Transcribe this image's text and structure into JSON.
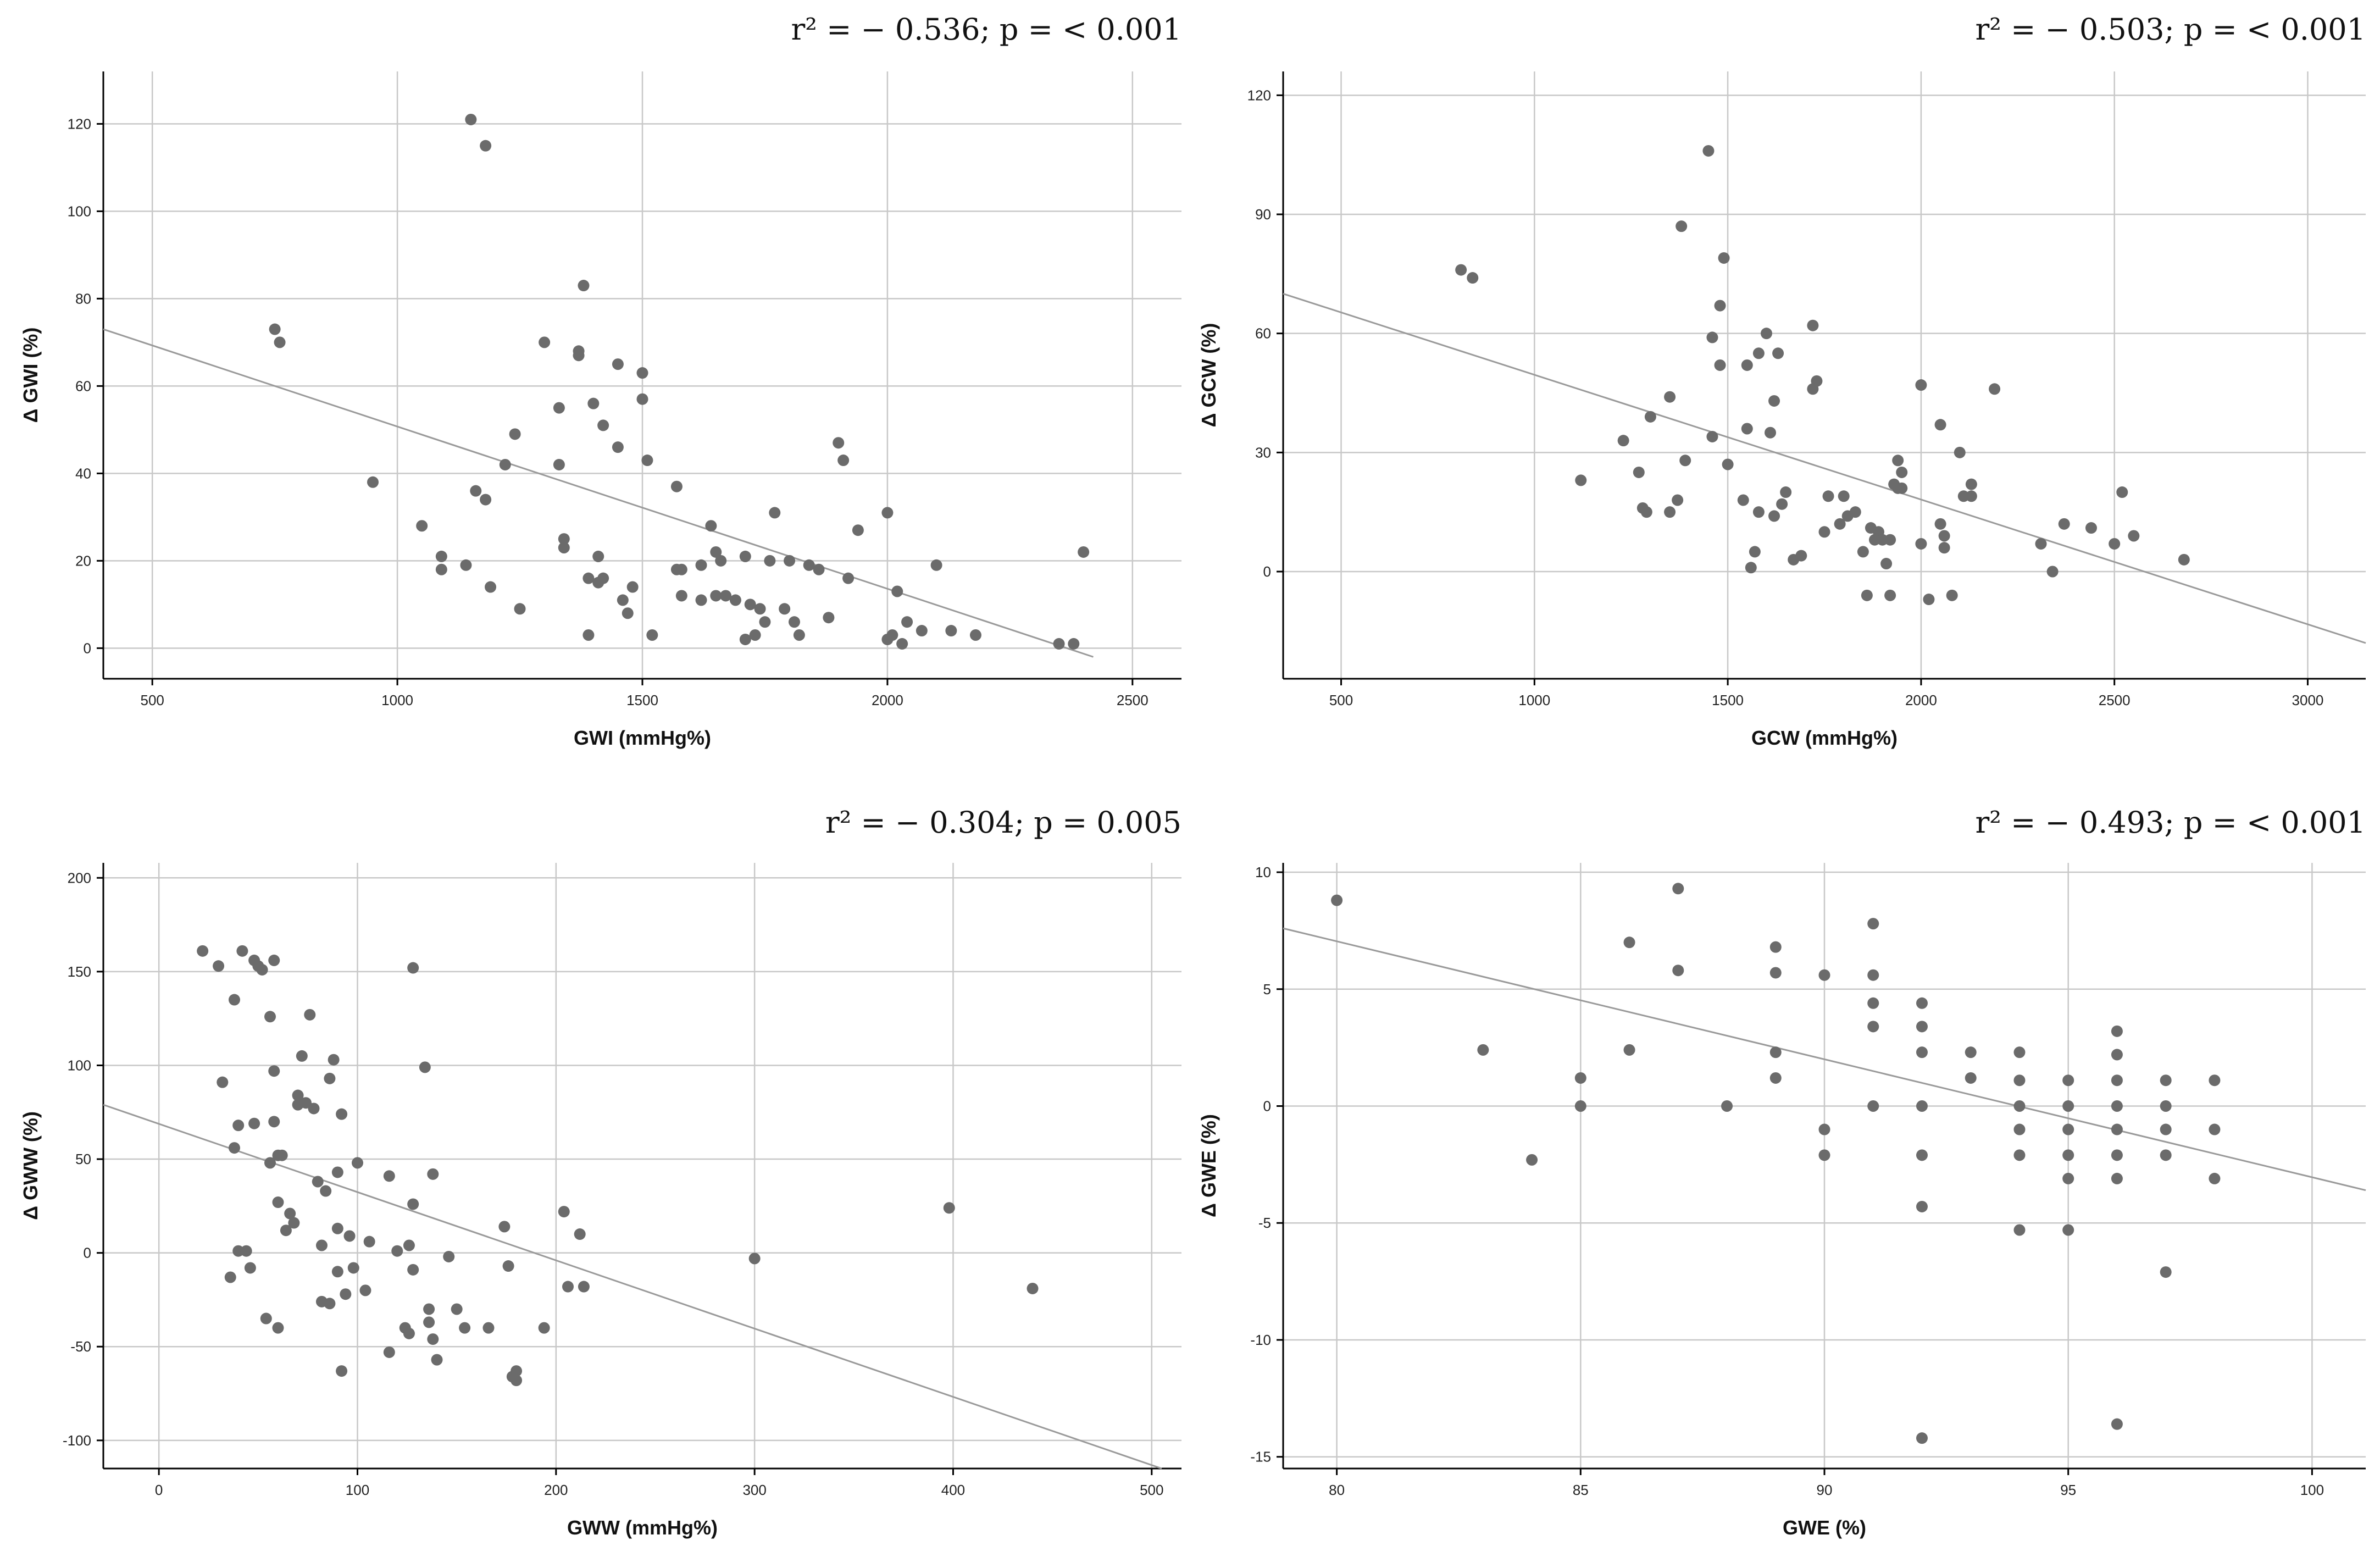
{
  "chart_data": [
    {
      "type": "scatter",
      "id": "gwi",
      "title": "",
      "stats_text": "r² = − 0.536; p = < 0.001",
      "xlabel": "GWI (mmHg%)",
      "ylabel": "Δ GWI (%)",
      "xlim": [
        400,
        2600
      ],
      "ylim": [
        -7,
        132
      ],
      "xticks": [
        500,
        1000,
        1500,
        2000,
        2500
      ],
      "yticks": [
        0,
        20,
        40,
        60,
        80,
        100,
        120
      ],
      "fit_line": {
        "x": [
          400,
          2420
        ],
        "y": [
          73,
          -2
        ]
      },
      "points": [
        [
          750,
          73
        ],
        [
          760,
          70
        ],
        [
          950,
          38
        ],
        [
          1050,
          28
        ],
        [
          1090,
          21
        ],
        [
          1090,
          18
        ],
        [
          1140,
          19
        ],
        [
          1150,
          121
        ],
        [
          1160,
          36
        ],
        [
          1180,
          115
        ],
        [
          1180,
          34
        ],
        [
          1190,
          14
        ],
        [
          1220,
          42
        ],
        [
          1240,
          49
        ],
        [
          1250,
          9
        ],
        [
          1300,
          70
        ],
        [
          1330,
          55
        ],
        [
          1330,
          42
        ],
        [
          1340,
          23
        ],
        [
          1340,
          25
        ],
        [
          1370,
          67
        ],
        [
          1370,
          68
        ],
        [
          1380,
          83
        ],
        [
          1390,
          3
        ],
        [
          1390,
          16
        ],
        [
          1400,
          56
        ],
        [
          1410,
          21
        ],
        [
          1410,
          15
        ],
        [
          1420,
          16
        ],
        [
          1420,
          51
        ],
        [
          1450,
          65
        ],
        [
          1450,
          46
        ],
        [
          1460,
          11
        ],
        [
          1470,
          8
        ],
        [
          1480,
          14
        ],
        [
          1500,
          63
        ],
        [
          1500,
          57
        ],
        [
          1510,
          43
        ],
        [
          1520,
          3
        ],
        [
          1570,
          37
        ],
        [
          1570,
          18
        ],
        [
          1580,
          18
        ],
        [
          1580,
          12
        ],
        [
          1620,
          19
        ],
        [
          1620,
          11
        ],
        [
          1640,
          28
        ],
        [
          1650,
          22
        ],
        [
          1650,
          12
        ],
        [
          1660,
          20
        ],
        [
          1670,
          12
        ],
        [
          1690,
          11
        ],
        [
          1710,
          21
        ],
        [
          1710,
          2
        ],
        [
          1720,
          10
        ],
        [
          1730,
          3
        ],
        [
          1740,
          9
        ],
        [
          1750,
          6
        ],
        [
          1760,
          20
        ],
        [
          1770,
          31
        ],
        [
          1790,
          9
        ],
        [
          1800,
          20
        ],
        [
          1810,
          6
        ],
        [
          1820,
          3
        ],
        [
          1840,
          19
        ],
        [
          1860,
          18
        ],
        [
          1880,
          7
        ],
        [
          1900,
          47
        ],
        [
          1910,
          43
        ],
        [
          1920,
          16
        ],
        [
          1940,
          27
        ],
        [
          2000,
          31
        ],
        [
          2000,
          2
        ],
        [
          2010,
          3
        ],
        [
          2020,
          13
        ],
        [
          2030,
          1
        ],
        [
          2040,
          6
        ],
        [
          2070,
          4
        ],
        [
          2100,
          19
        ],
        [
          2130,
          4
        ],
        [
          2180,
          3
        ],
        [
          2350,
          1
        ],
        [
          2380,
          1
        ],
        [
          2400,
          22
        ]
      ]
    },
    {
      "type": "scatter",
      "id": "gcw",
      "title": "",
      "stats_text": "r² = − 0.503; p = < 0.001",
      "xlabel": "GCW (mmHg%)",
      "ylabel": "Δ GCW (%)",
      "xlim": [
        350,
        3150
      ],
      "ylim": [
        -27,
        126
      ],
      "xticks": [
        500,
        1000,
        1500,
        2000,
        2500,
        3000
      ],
      "yticks": [
        0,
        30,
        60,
        90,
        120
      ],
      "fit_line": {
        "x": [
          350,
          3150
        ],
        "y": [
          70,
          -18
        ]
      },
      "points": [
        [
          810,
          76
        ],
        [
          840,
          74
        ],
        [
          1120,
          23
        ],
        [
          1230,
          33
        ],
        [
          1270,
          25
        ],
        [
          1280,
          16
        ],
        [
          1290,
          15
        ],
        [
          1300,
          39
        ],
        [
          1350,
          44
        ],
        [
          1350,
          15
        ],
        [
          1370,
          18
        ],
        [
          1380,
          87
        ],
        [
          1390,
          28
        ],
        [
          1450,
          106
        ],
        [
          1460,
          59
        ],
        [
          1460,
          34
        ],
        [
          1480,
          67
        ],
        [
          1480,
          52
        ],
        [
          1490,
          79
        ],
        [
          1500,
          27
        ],
        [
          1540,
          18
        ],
        [
          1550,
          52
        ],
        [
          1550,
          36
        ],
        [
          1560,
          1
        ],
        [
          1570,
          5
        ],
        [
          1580,
          55
        ],
        [
          1580,
          15
        ],
        [
          1600,
          60
        ],
        [
          1610,
          35
        ],
        [
          1620,
          43
        ],
        [
          1620,
          14
        ],
        [
          1630,
          55
        ],
        [
          1640,
          17
        ],
        [
          1650,
          20
        ],
        [
          1670,
          3
        ],
        [
          1690,
          4
        ],
        [
          1720,
          62
        ],
        [
          1720,
          46
        ],
        [
          1730,
          48
        ],
        [
          1750,
          10
        ],
        [
          1760,
          19
        ],
        [
          1790,
          12
        ],
        [
          1800,
          19
        ],
        [
          1810,
          14
        ],
        [
          1830,
          15
        ],
        [
          1850,
          5
        ],
        [
          1860,
          -6
        ],
        [
          1870,
          11
        ],
        [
          1880,
          8
        ],
        [
          1890,
          10
        ],
        [
          1900,
          8
        ],
        [
          1910,
          2
        ],
        [
          1920,
          8
        ],
        [
          1920,
          -6
        ],
        [
          1930,
          22
        ],
        [
          1940,
          21
        ],
        [
          1940,
          28
        ],
        [
          1950,
          25
        ],
        [
          1950,
          21
        ],
        [
          2000,
          47
        ],
        [
          2000,
          7
        ],
        [
          2020,
          -7
        ],
        [
          2050,
          37
        ],
        [
          2050,
          12
        ],
        [
          2060,
          9
        ],
        [
          2060,
          6
        ],
        [
          2080,
          -6
        ],
        [
          2100,
          30
        ],
        [
          2110,
          19
        ],
        [
          2130,
          22
        ],
        [
          2130,
          19
        ],
        [
          2190,
          46
        ],
        [
          2310,
          7
        ],
        [
          2340,
          0
        ],
        [
          2370,
          12
        ],
        [
          2440,
          11
        ],
        [
          2500,
          7
        ],
        [
          2520,
          20
        ],
        [
          2550,
          9
        ],
        [
          2680,
          3
        ]
      ]
    },
    {
      "type": "scatter",
      "id": "gww",
      "title": "",
      "stats_text": "r² = − 0.304; p = 0.005",
      "xlabel": "GWW (mmHg%)",
      "ylabel": "Δ GWW (%)",
      "xlim": [
        -28,
        515
      ],
      "ylim": [
        -115,
        208
      ],
      "xticks": [
        0,
        100,
        200,
        300,
        400,
        500
      ],
      "yticks": [
        -100,
        -50,
        0,
        50,
        100,
        150,
        200
      ],
      "fit_line": {
        "x": [
          -28,
          505
        ],
        "y": [
          79,
          -115
        ]
      },
      "points": [
        [
          22,
          161
        ],
        [
          30,
          153
        ],
        [
          32,
          91
        ],
        [
          36,
          -13
        ],
        [
          38,
          135
        ],
        [
          38,
          56
        ],
        [
          40,
          68
        ],
        [
          40,
          1
        ],
        [
          42,
          161
        ],
        [
          44,
          1
        ],
        [
          46,
          -8
        ],
        [
          48,
          69
        ],
        [
          48,
          156
        ],
        [
          50,
          153
        ],
        [
          52,
          151
        ],
        [
          54,
          -35
        ],
        [
          56,
          48
        ],
        [
          56,
          126
        ],
        [
          58,
          156
        ],
        [
          58,
          97
        ],
        [
          58,
          70
        ],
        [
          60,
          52
        ],
        [
          60,
          -40
        ],
        [
          60,
          27
        ],
        [
          62,
          52
        ],
        [
          64,
          12
        ],
        [
          66,
          21
        ],
        [
          68,
          16
        ],
        [
          70,
          79
        ],
        [
          70,
          84
        ],
        [
          72,
          105
        ],
        [
          74,
          80
        ],
        [
          76,
          127
        ],
        [
          78,
          77
        ],
        [
          80,
          38
        ],
        [
          82,
          -26
        ],
        [
          82,
          4
        ],
        [
          84,
          33
        ],
        [
          86,
          93
        ],
        [
          86,
          -27
        ],
        [
          88,
          103
        ],
        [
          90,
          13
        ],
        [
          90,
          -10
        ],
        [
          90,
          43
        ],
        [
          92,
          74
        ],
        [
          92,
          -63
        ],
        [
          94,
          -22
        ],
        [
          96,
          9
        ],
        [
          98,
          -8
        ],
        [
          100,
          48
        ],
        [
          104,
          -20
        ],
        [
          106,
          6
        ],
        [
          116,
          41
        ],
        [
          116,
          -53
        ],
        [
          120,
          1
        ],
        [
          124,
          -40
        ],
        [
          126,
          -43
        ],
        [
          126,
          4
        ],
        [
          128,
          152
        ],
        [
          128,
          26
        ],
        [
          128,
          -9
        ],
        [
          134,
          99
        ],
        [
          136,
          -30
        ],
        [
          136,
          -37
        ],
        [
          138,
          -46
        ],
        [
          138,
          42
        ],
        [
          140,
          -57
        ],
        [
          146,
          -2
        ],
        [
          150,
          -30
        ],
        [
          154,
          -40
        ],
        [
          166,
          -40
        ],
        [
          174,
          14
        ],
        [
          176,
          -7
        ],
        [
          178,
          -66
        ],
        [
          180,
          -63
        ],
        [
          180,
          -68
        ],
        [
          194,
          -40
        ],
        [
          204,
          22
        ],
        [
          206,
          -18
        ],
        [
          212,
          10
        ],
        [
          214,
          -18
        ],
        [
          300,
          -3
        ],
        [
          398,
          24
        ],
        [
          440,
          -19
        ]
      ]
    },
    {
      "type": "scatter",
      "id": "gwe",
      "title": "",
      "stats_text": "r² = − 0.493; p = < 0.001",
      "xlabel": "GWE (%)",
      "ylabel": "Δ GWE (%)",
      "xlim": [
        78.9,
        101.1
      ],
      "ylim": [
        -15.5,
        10.4
      ],
      "xticks": [
        80,
        85,
        90,
        95,
        100
      ],
      "yticks": [
        -15,
        -10,
        -5,
        0,
        5,
        10
      ],
      "fit_line": {
        "x": [
          78.9,
          101.1
        ],
        "y": [
          7.6,
          -3.6
        ]
      },
      "points": [
        [
          80,
          8.8
        ],
        [
          83,
          2.4
        ],
        [
          84,
          -2.3
        ],
        [
          85,
          1.2
        ],
        [
          85,
          0
        ],
        [
          86,
          7
        ],
        [
          86,
          2.4
        ],
        [
          87,
          9.3
        ],
        [
          87,
          5.8
        ],
        [
          88,
          0
        ],
        [
          89,
          6.8
        ],
        [
          89,
          5.7
        ],
        [
          89,
          2.3
        ],
        [
          89,
          1.2
        ],
        [
          90,
          5.6
        ],
        [
          90,
          -1.0
        ],
        [
          90,
          -2.1
        ],
        [
          91,
          7.8
        ],
        [
          91,
          5.6
        ],
        [
          91,
          4.4
        ],
        [
          91,
          3.4
        ],
        [
          91,
          0
        ],
        [
          92,
          4.4
        ],
        [
          92,
          3.4
        ],
        [
          92,
          2.3
        ],
        [
          92,
          0
        ],
        [
          92,
          -2.1
        ],
        [
          92,
          -4.3
        ],
        [
          92,
          -14.2
        ],
        [
          93,
          2.3
        ],
        [
          93,
          1.2
        ],
        [
          94,
          2.3
        ],
        [
          94,
          1.1
        ],
        [
          94,
          0
        ],
        [
          94,
          -1.0
        ],
        [
          94,
          -2.1
        ],
        [
          94,
          -5.3
        ],
        [
          95,
          1.1
        ],
        [
          95,
          0
        ],
        [
          95,
          -1.0
        ],
        [
          95,
          -2.1
        ],
        [
          95,
          -3.1
        ],
        [
          95,
          -5.3
        ],
        [
          96,
          3.2
        ],
        [
          96,
          2.2
        ],
        [
          96,
          1.1
        ],
        [
          96,
          0
        ],
        [
          96,
          -1.0
        ],
        [
          96,
          -2.1
        ],
        [
          96,
          -3.1
        ],
        [
          96,
          -13.6
        ],
        [
          97,
          1.1
        ],
        [
          97,
          0
        ],
        [
          97,
          -1.0
        ],
        [
          97,
          -2.1
        ],
        [
          97,
          -7.1
        ],
        [
          98,
          1.1
        ],
        [
          98,
          -1.0
        ],
        [
          98,
          -3.1
        ]
      ]
    }
  ]
}
